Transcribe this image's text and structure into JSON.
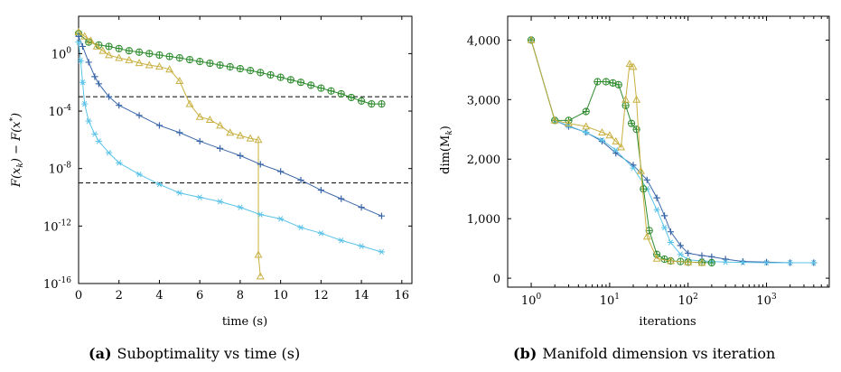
{
  "colors": {
    "green": "#2e8b2e",
    "yellow": "#c8b040",
    "darkblue": "#3a66a8",
    "lightblue": "#5bc3e8",
    "ref_line": "#000000"
  },
  "captions": {
    "a_tag": "(a)",
    "a_text": "Suboptimality vs time (s)",
    "b_tag": "(b)",
    "b_text": "Manifold dimension vs iteration"
  },
  "chart_data": [
    {
      "type": "line",
      "xlabel": "time (s)",
      "ylabel": "F(x_k) − F(x*)",
      "ylabel_main": "F(x",
      "ylabel_sub1": "k",
      "ylabel_mid": ") − F(x",
      "ylabel_sup": "*",
      "ylabel_end": ")",
      "xscale": "linear",
      "yscale": "log",
      "xlim": [
        0,
        16.5
      ],
      "ylim_exp": [
        -16,
        2.6
      ],
      "xticks": [
        "0",
        "2",
        "4",
        "6",
        "8",
        "10",
        "12",
        "14",
        "16"
      ],
      "yticks_exp": [
        "0",
        "-4",
        "-8",
        "-12",
        "-16"
      ],
      "ytick_base": "10",
      "reference_lines_exp": [
        -3,
        -9
      ],
      "series": [
        {
          "color_key": "green",
          "marker": "circle-plus",
          "x": [
            0,
            0.5,
            1,
            1.5,
            2,
            2.5,
            3,
            3.5,
            4,
            4.5,
            5,
            5.5,
            6,
            6.5,
            7,
            7.5,
            8,
            8.5,
            9,
            9.5,
            10,
            10.5,
            11,
            11.5,
            12,
            12.5,
            13,
            13.5,
            14,
            14.5,
            15
          ],
          "y_exp": [
            1.4,
            0.8,
            0.6,
            0.5,
            0.35,
            0.2,
            0.1,
            0,
            -0.1,
            -0.2,
            -0.3,
            -0.42,
            -0.55,
            -0.67,
            -0.8,
            -0.92,
            -1.05,
            -1.18,
            -1.32,
            -1.48,
            -1.65,
            -1.82,
            -2.0,
            -2.2,
            -2.4,
            -2.6,
            -2.8,
            -3.05,
            -3.3,
            -3.5,
            -3.5
          ]
        },
        {
          "color_key": "yellow",
          "marker": "triangle",
          "x": [
            0,
            0.3,
            0.6,
            0.9,
            1.2,
            1.5,
            2,
            2.5,
            3,
            3.5,
            4,
            4.5,
            5,
            5.5,
            6,
            6.5,
            7,
            7.5,
            8,
            8.5,
            8.9,
            8.9,
            9.0
          ],
          "y_exp": [
            1.5,
            1.2,
            0.9,
            0.5,
            0.2,
            -0.1,
            -0.3,
            -0.45,
            -0.65,
            -0.8,
            -0.9,
            -1.1,
            -1.9,
            -3.5,
            -4.4,
            -4.6,
            -5,
            -5.5,
            -5.7,
            -5.9,
            -6.0,
            -14.0,
            -15.5
          ]
        },
        {
          "color_key": "darkblue",
          "marker": "plus",
          "x": [
            0,
            0.2,
            0.5,
            0.8,
            1.0,
            1.5,
            2,
            3,
            4,
            5,
            6,
            7,
            8,
            9,
            10,
            11,
            12,
            13,
            14,
            15
          ],
          "y_exp": [
            1.2,
            0.5,
            -0.6,
            -1.6,
            -2.1,
            -3.0,
            -3.6,
            -4.3,
            -5.0,
            -5.5,
            -6.1,
            -6.6,
            -7.1,
            -7.7,
            -8.2,
            -8.8,
            -9.5,
            -10.1,
            -10.7,
            -11.3
          ]
        },
        {
          "color_key": "lightblue",
          "marker": "star",
          "x": [
            0,
            0.1,
            0.2,
            0.3,
            0.5,
            0.8,
            1.0,
            1.5,
            2,
            3,
            4,
            5,
            6,
            7,
            8,
            9,
            10,
            11,
            12,
            13,
            14,
            15
          ],
          "y_exp": [
            0.8,
            -0.5,
            -2.0,
            -3.5,
            -4.7,
            -5.6,
            -6.1,
            -6.9,
            -7.6,
            -8.4,
            -9.1,
            -9.7,
            -10.0,
            -10.3,
            -10.7,
            -11.2,
            -11.5,
            -12.1,
            -12.5,
            -13.0,
            -13.4,
            -13.8
          ]
        }
      ]
    },
    {
      "type": "line",
      "xlabel": "iterations",
      "ylabel": "dim(M_k)",
      "ylabel_main": "dim(M",
      "ylabel_sub": "k",
      "ylabel_end": ")",
      "xscale": "log",
      "yscale": "linear",
      "xlim_exp": [
        -0.3,
        3.8
      ],
      "ylim": [
        -150,
        4400
      ],
      "xticks_exp": [
        "0",
        "1",
        "2",
        "3"
      ],
      "xtick_base": "10",
      "yticks": [
        0,
        1000,
        2000,
        3000,
        4000
      ],
      "ytick_labels": [
        "0",
        "1,000",
        "2,000",
        "3,000",
        "4,000"
      ],
      "series": [
        {
          "color_key": "darkblue",
          "marker": "plus",
          "x": [
            1,
            2,
            3,
            5,
            8,
            12,
            20,
            30,
            40,
            50,
            60,
            80,
            100,
            150,
            200,
            300,
            500,
            1000,
            2000,
            4000
          ],
          "y": [
            4000,
            2650,
            2550,
            2450,
            2300,
            2100,
            1900,
            1650,
            1350,
            1050,
            780,
            550,
            420,
            380,
            360,
            320,
            280,
            270,
            260,
            260
          ]
        },
        {
          "color_key": "lightblue",
          "marker": "star",
          "x": [
            1,
            2,
            3,
            5,
            8,
            12,
            20,
            30,
            40,
            50,
            60,
            80,
            100,
            150,
            200,
            300,
            500,
            1000,
            2000,
            4000
          ],
          "y": [
            4000,
            2650,
            2560,
            2450,
            2320,
            2150,
            1850,
            1500,
            1150,
            850,
            600,
            400,
            310,
            290,
            280,
            270,
            265,
            260,
            260,
            260
          ]
        },
        {
          "color_key": "green",
          "marker": "circle-plus",
          "x": [
            1,
            2,
            3,
            5,
            7,
            9,
            11,
            13,
            16,
            19,
            22,
            27,
            32,
            40,
            50,
            60,
            80,
            100,
            150,
            200
          ],
          "y": [
            4000,
            2650,
            2650,
            2800,
            3300,
            3300,
            3280,
            3250,
            2900,
            2600,
            2500,
            1500,
            800,
            400,
            320,
            290,
            280,
            270,
            265,
            260
          ]
        },
        {
          "color_key": "yellow",
          "marker": "triangle",
          "x": [
            1,
            2,
            3,
            5,
            8,
            10,
            12,
            14,
            16,
            18,
            20,
            22,
            25,
            30,
            40,
            60,
            100,
            150
          ],
          "y": [
            4000,
            2650,
            2600,
            2550,
            2450,
            2400,
            2300,
            2200,
            3000,
            3600,
            3550,
            3000,
            1800,
            700,
            330,
            290,
            270,
            260
          ]
        }
      ]
    }
  ]
}
